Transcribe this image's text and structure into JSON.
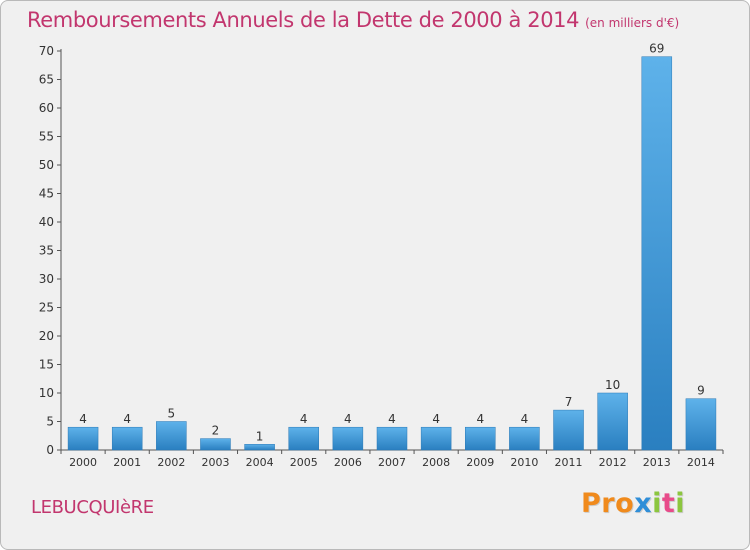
{
  "chart_data": {
    "type": "bar",
    "title": "Remboursements Annuels de la Dette de 2000 à 2014",
    "unit_note": "(en milliers d'€)",
    "categories": [
      "2000",
      "2001",
      "2002",
      "2003",
      "2004",
      "2005",
      "2006",
      "2007",
      "2008",
      "2009",
      "2010",
      "2011",
      "2012",
      "2013",
      "2014"
    ],
    "values": [
      4,
      4,
      5,
      2,
      1,
      4,
      4,
      4,
      4,
      4,
      4,
      7,
      10,
      69,
      9
    ],
    "ylim": [
      0,
      70
    ],
    "yticks": [
      0,
      5,
      10,
      15,
      20,
      25,
      30,
      35,
      40,
      45,
      50,
      55,
      60,
      65,
      70
    ],
    "xlabel": "",
    "ylabel": "",
    "grid": false,
    "bar_color_light": "#5eb2ea",
    "bar_color_dark": "#2a7fc0"
  },
  "footer": {
    "commune": "LEBUCQUIèRE",
    "logo_text": "Proxiti"
  },
  "colors": {
    "title": "#c2366e",
    "axis": "#555555",
    "logo": [
      "#f08a1c",
      "#f08a1c",
      "#f08a1c",
      "#2f8ed8",
      "#8cc63f",
      "#e84b8a",
      "#8cc63f"
    ]
  }
}
